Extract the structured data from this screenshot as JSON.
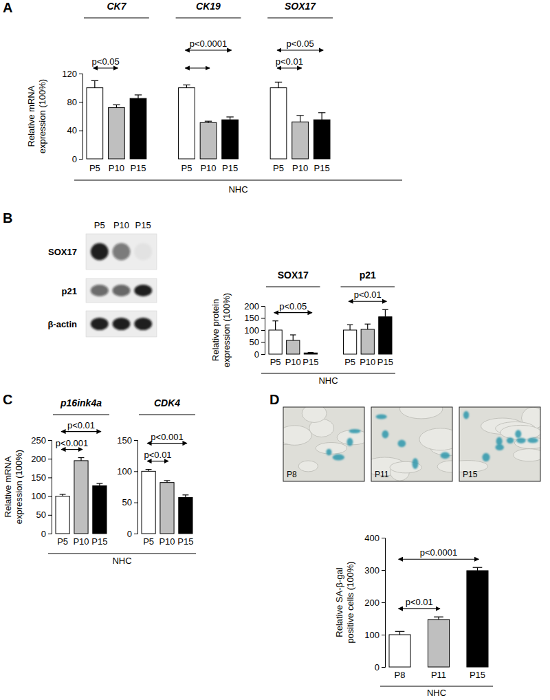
{
  "chart_data": [
    {
      "type": "bar",
      "panel_label": "A",
      "categories": [
        "CK7",
        "CK19",
        "SOX17"
      ],
      "series": [
        {
          "name": "P5",
          "color": "#ffffff",
          "values": [
            100,
            100,
            100
          ],
          "errors": [
            10,
            4,
            8
          ]
        },
        {
          "name": "P10",
          "color": "#bfbfbf",
          "values": [
            72,
            51,
            52
          ],
          "errors": [
            4,
            2,
            9
          ]
        },
        {
          "name": "P15",
          "color": "#000000",
          "values": [
            85,
            55,
            55
          ],
          "errors": [
            5,
            4,
            10
          ]
        }
      ],
      "ylim": [
        0,
        120
      ],
      "yticks": [
        0,
        40,
        80,
        120
      ],
      "y_label": [
        "Relative mRNA",
        "expression (100%)"
      ],
      "x_label": "NHC",
      "annotations": [
        {
          "category": "CK7",
          "from": "P5",
          "to": "P10",
          "label": "p<0.05"
        },
        {
          "category": "CK19",
          "from": "P5",
          "to": "P15",
          "label": "p<0.0001"
        },
        {
          "category": "CK19",
          "from": "P5",
          "to": "P10"
        },
        {
          "category": "SOX17",
          "from": "P5",
          "to": "P15",
          "label": "p<0.05"
        },
        {
          "category": "SOX17",
          "from": "P5",
          "to": "P10",
          "label": "p<0.01"
        }
      ]
    },
    {
      "type": "bar",
      "panel_label": "B",
      "categories": [
        "SOX17",
        "p21"
      ],
      "series": [
        {
          "name": "P5",
          "color": "#ffffff",
          "values": [
            100,
            100
          ],
          "errors": [
            38,
            22
          ]
        },
        {
          "name": "P10",
          "color": "#bfbfbf",
          "values": [
            57,
            103
          ],
          "errors": [
            23,
            22
          ]
        },
        {
          "name": "P15",
          "color": "#000000",
          "values": [
            5,
            155
          ],
          "errors": [
            2,
            30
          ]
        }
      ],
      "ylim": [
        0,
        200
      ],
      "yticks": [
        0,
        50,
        100,
        150,
        200
      ],
      "y_label": [
        "Relative protein",
        "expression (100%)"
      ],
      "x_label": "NHC",
      "annotations": [
        {
          "category": "SOX17",
          "from": "P5",
          "to": "P15",
          "label": "p<0.05"
        },
        {
          "category": "p21",
          "from": "P5",
          "to": "P15",
          "label": "p<0.01"
        }
      ],
      "blot": {
        "lanes": [
          "P5",
          "P10",
          "P15"
        ],
        "rows": [
          "SOX17",
          "p21",
          "β-actin"
        ]
      }
    },
    {
      "type": "bar",
      "panel_label": "C",
      "categories": [
        "p16ink4a"
      ],
      "series": [
        {
          "name": "P5",
          "color": "#ffffff",
          "values": [
            100
          ],
          "errors": [
            5
          ]
        },
        {
          "name": "P10",
          "color": "#bfbfbf",
          "values": [
            195
          ],
          "errors": [
            8
          ]
        },
        {
          "name": "P15",
          "color": "#000000",
          "values": [
            128
          ],
          "errors": [
            6
          ]
        }
      ],
      "ylim": [
        0,
        250
      ],
      "yticks": [
        0,
        50,
        100,
        150,
        200,
        250
      ],
      "y_label": [
        "Relative mRNA",
        "expression (100%)"
      ],
      "x_label": "NHC",
      "annotations": [
        {
          "category": "p16ink4a",
          "from": "P5",
          "to": "P15",
          "label": "p<0.01"
        },
        {
          "category": "p16ink4a",
          "from": "P5",
          "to": "P10",
          "label": "p<0.001"
        }
      ]
    },
    {
      "type": "bar",
      "categories": [
        "CDK4"
      ],
      "series": [
        {
          "name": "P5",
          "color": "#ffffff",
          "values": [
            100
          ],
          "errors": [
            3
          ]
        },
        {
          "name": "P10",
          "color": "#bfbfbf",
          "values": [
            82
          ],
          "errors": [
            3
          ]
        },
        {
          "name": "P15",
          "color": "#000000",
          "values": [
            58
          ],
          "errors": [
            4
          ]
        }
      ],
      "ylim": [
        0,
        150
      ],
      "yticks": [
        0,
        50,
        100,
        150
      ],
      "annotations": [
        {
          "category": "CDK4",
          "from": "P5",
          "to": "P15",
          "label": "p<0.001"
        },
        {
          "category": "CDK4",
          "from": "P5",
          "to": "P10",
          "label": "p<0.01"
        }
      ]
    },
    {
      "type": "bar",
      "panel_label": "D",
      "categories": [
        null
      ],
      "series": [
        {
          "name": "P8",
          "color": "#ffffff",
          "values": [
            100
          ],
          "errors": [
            10
          ]
        },
        {
          "name": "P11",
          "color": "#bfbfbf",
          "values": [
            147
          ],
          "errors": [
            8
          ]
        },
        {
          "name": "P15",
          "color": "#000000",
          "values": [
            298
          ],
          "errors": [
            10
          ]
        }
      ],
      "ylim": [
        0,
        400
      ],
      "yticks": [
        0,
        100,
        200,
        300,
        400
      ],
      "y_label": [
        "Relative SA-β-gal",
        "positive cells (100%)"
      ],
      "x_label": "NHC",
      "annotations": [
        {
          "category": null,
          "from": "P8",
          "to": "P15",
          "label": "p<0.0001"
        },
        {
          "category": null,
          "from": "P8",
          "to": "P11",
          "label": "p<0.01"
        }
      ],
      "images": [
        "P8",
        "P11",
        "P15"
      ]
    }
  ]
}
